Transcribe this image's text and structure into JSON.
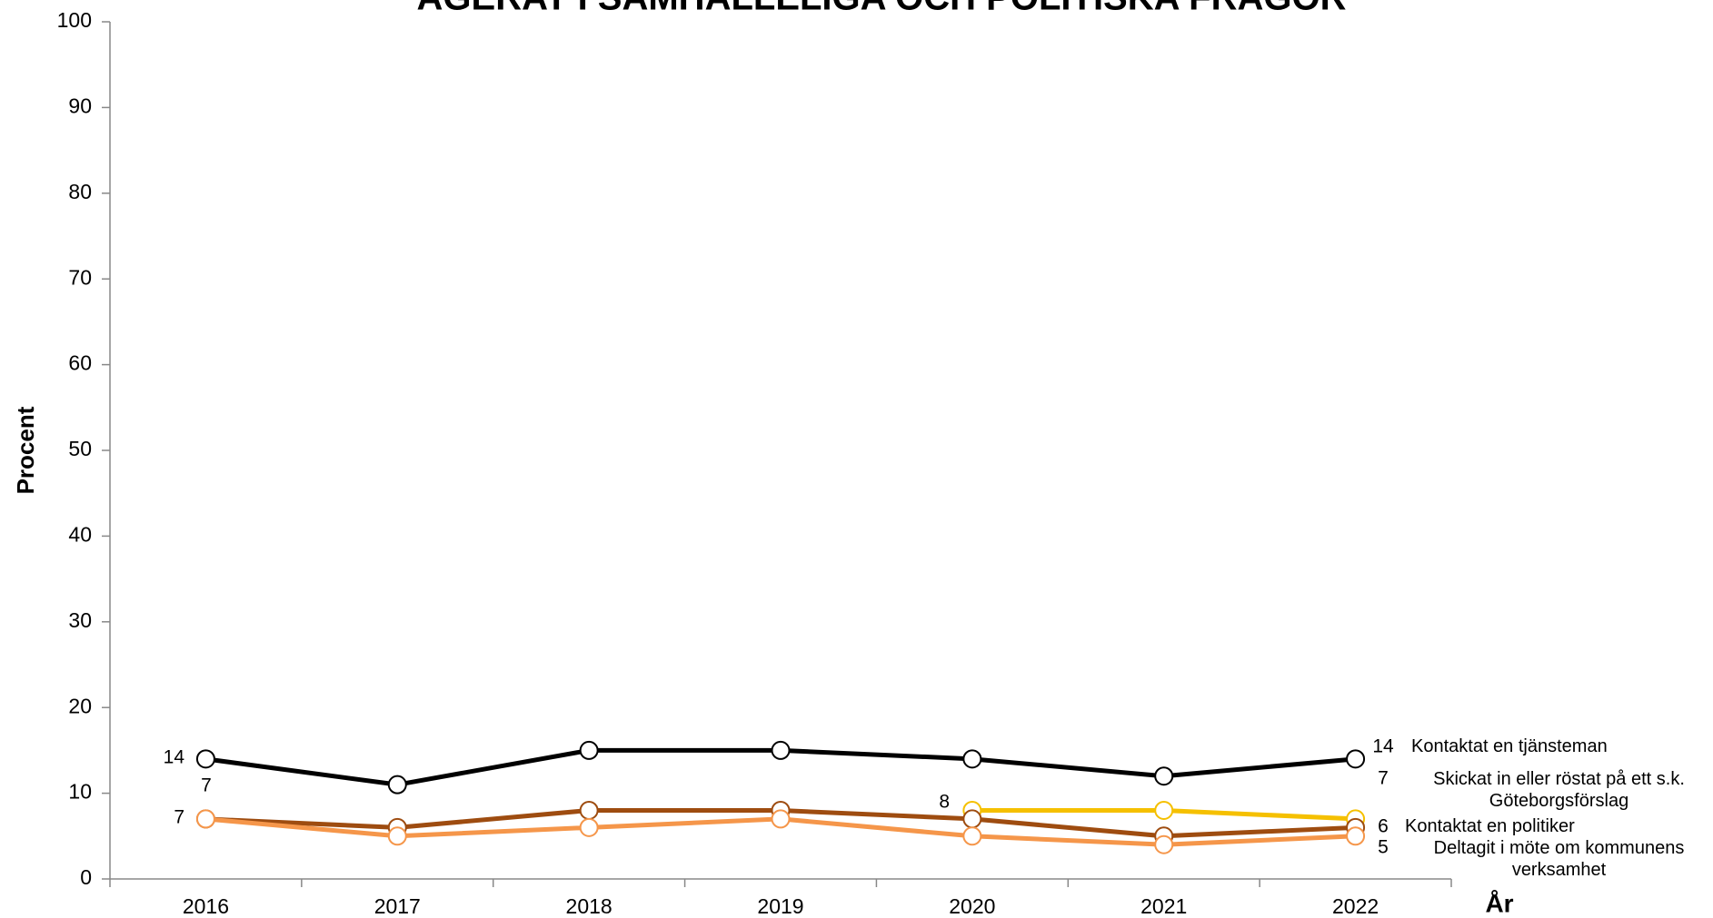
{
  "chart_data": {
    "type": "line",
    "title": "AGERAT I SAMHÄLLELIGA OCH POLITISKA FRÅGOR",
    "y_label": "Procent",
    "x_label": "År",
    "categories": [
      "2016",
      "2017",
      "2018",
      "2019",
      "2020",
      "2021",
      "2022"
    ],
    "ylim": [
      0,
      100
    ],
    "yticks": [
      0,
      10,
      20,
      30,
      40,
      50,
      60,
      70,
      80,
      90,
      100
    ],
    "series": [
      {
        "name": "Kontaktat en tjänsteman",
        "color": "#000000",
        "values": [
          14,
          11,
          15,
          15,
          14,
          12,
          14
        ]
      },
      {
        "name": "Skickat in eller röstat på ett s.k. Göteborgsförslag",
        "color": "#f5c000",
        "values": [
          null,
          null,
          null,
          null,
          8,
          8,
          7
        ]
      },
      {
        "name": "Kontaktat en politiker",
        "color": "#9e4c10",
        "values": [
          7,
          6,
          8,
          8,
          7,
          5,
          6
        ]
      },
      {
        "name": "Deltagit i möte om kommunens verksamhet",
        "color": "#f5964a",
        "values": [
          7,
          5,
          6,
          7,
          5,
          4,
          5
        ]
      }
    ]
  }
}
